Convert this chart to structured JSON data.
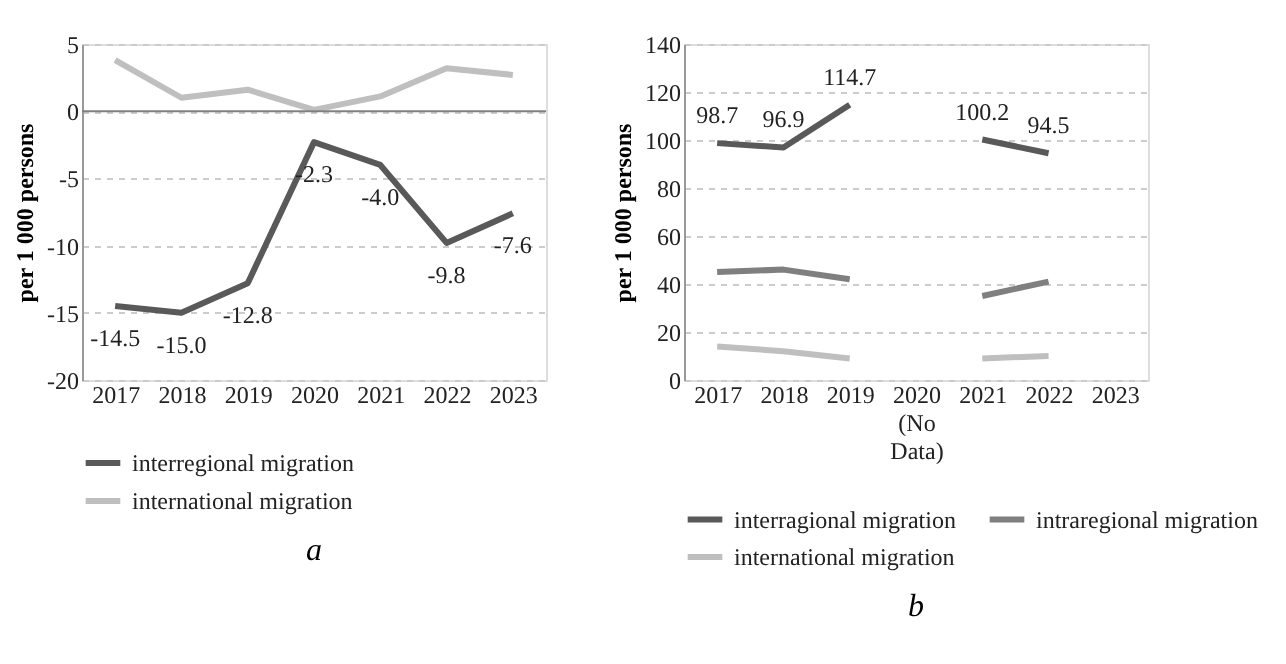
{
  "chart_data": [
    {
      "type": "line",
      "title": "a",
      "ylabel": "per 1 000 persons",
      "categories": [
        "2017",
        "2018",
        "2019",
        "2020",
        "2021",
        "2022",
        "2023"
      ],
      "ylim": [
        -20,
        5
      ],
      "yticks": [
        -20,
        -15,
        -10,
        -5,
        0,
        5
      ],
      "grid": "y",
      "legend": "bottom",
      "ref_lines": [
        {
          "axis": "y",
          "value": 0,
          "color": "#808080"
        }
      ],
      "series": [
        {
          "name": "interregional migration",
          "color": "#595959",
          "values": [
            -14.5,
            -15.0,
            -12.8,
            -2.3,
            -4.0,
            -9.8,
            -7.6
          ],
          "value_labels": [
            "-14.5",
            "-15.0",
            "-12.8",
            "-2.3",
            "-4.0",
            "-9.8",
            "-7.6"
          ]
        },
        {
          "name": "international migration",
          "color": "#bfbfbf",
          "values": [
            3.8,
            1.0,
            1.6,
            0.1,
            1.1,
            3.2,
            2.7
          ]
        }
      ]
    },
    {
      "type": "line",
      "title": "b",
      "ylabel": "per 1 000 persons",
      "categories": [
        "2017",
        "2018",
        "2019",
        "2020\n(No\nData)",
        "2021",
        "2022",
        "2023"
      ],
      "ylim": [
        0,
        140
      ],
      "yticks": [
        0,
        20,
        40,
        60,
        80,
        100,
        120,
        140
      ],
      "grid": "y",
      "legend": "bottom",
      "series": [
        {
          "name": "interragional migration",
          "color": "#595959",
          "values": [
            98.7,
            96.9,
            114.7,
            null,
            100.2,
            94.5,
            null
          ],
          "value_labels": [
            "98.7",
            "96.9",
            "114.7",
            null,
            "100.2",
            "94.5",
            null
          ]
        },
        {
          "name": "intraregional migration",
          "color": "#7f7f7f",
          "values": [
            45,
            46,
            42,
            null,
            35,
            41,
            null
          ]
        },
        {
          "name": "international migration",
          "color": "#bfbfbf",
          "values": [
            14,
            12,
            9,
            null,
            9,
            10,
            null
          ]
        }
      ]
    }
  ]
}
